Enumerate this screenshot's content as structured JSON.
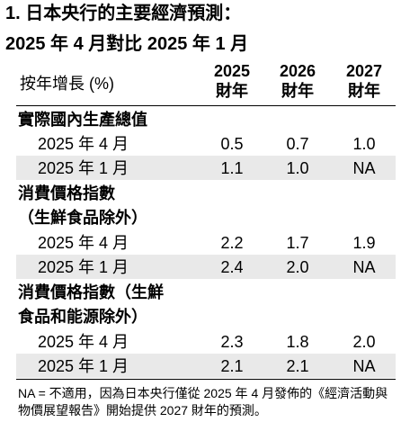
{
  "title_line1": "1. 日本央行的主要經濟預測：",
  "title_line2": "2025 年 4 月對比 2025 年 1 月",
  "header": {
    "unit": "按年增長 (%)",
    "columns": [
      {
        "year": "2025",
        "suffix": "財年"
      },
      {
        "year": "2026",
        "suffix": "財年"
      },
      {
        "year": "2027",
        "suffix": "財年"
      }
    ]
  },
  "sections": [
    {
      "title_lines": [
        "實際國內生產總值"
      ],
      "rows": [
        {
          "label": "2025 年 4 月",
          "values": [
            "0.5",
            "0.7",
            "1.0"
          ]
        },
        {
          "label": "2025 年 1 月",
          "values": [
            "1.1",
            "1.0",
            "NA"
          ]
        }
      ]
    },
    {
      "title_lines": [
        "消費價格指數",
        "（生鮮食品除外）"
      ],
      "rows": [
        {
          "label": "2025 年 4 月",
          "values": [
            "2.2",
            "1.7",
            "1.9"
          ]
        },
        {
          "label": "2025 年 1 月",
          "values": [
            "2.4",
            "2.0",
            "NA"
          ]
        }
      ]
    },
    {
      "title_lines": [
        "消費價格指數（生鮮",
        "食品和能源除外）"
      ],
      "rows": [
        {
          "label": "2025 年 4 月",
          "values": [
            "2.3",
            "1.8",
            "2.0"
          ]
        },
        {
          "label": "2025 年 1 月",
          "values": [
            "2.1",
            "2.1",
            "NA"
          ]
        }
      ]
    }
  ],
  "footnote": "NA = 不適用，因為日本央行僅從 2025 年 4 月發佈的《經濟活動與物價展望報告》開始提供 2027 財年的預測。"
}
